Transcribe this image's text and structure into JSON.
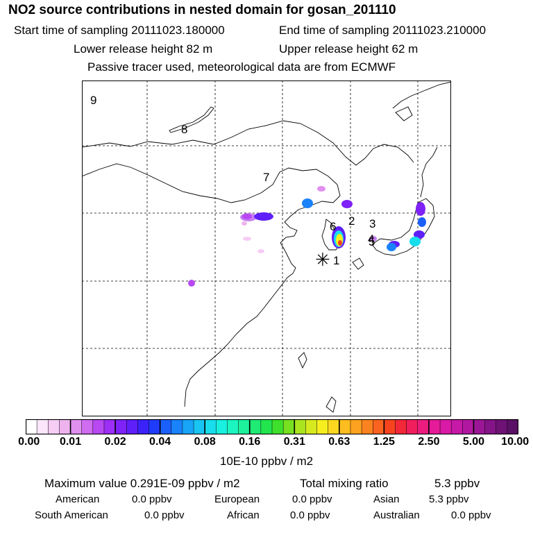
{
  "header": {
    "title": "NO2 source contributions in nested domain for gosan_201110",
    "start_time": "Start time of sampling 20111023.180000",
    "end_time": "End time of sampling 20111023.210000",
    "lower_release": "Lower release height   82 m",
    "upper_release": "Upper release height   62 m",
    "tracer_note": "Passive tracer used, meteorological data are from ECMWF"
  },
  "map": {
    "region_labels": [
      "9",
      "8",
      "7",
      "6",
      "2",
      "3",
      "4",
      "5",
      "1"
    ],
    "receptor_symbol": "✳"
  },
  "colorbar": {
    "tick_labels": [
      "0.00",
      "0.01",
      "0.02",
      "0.04",
      "0.08",
      "0.16",
      "0.31",
      "0.63",
      "1.25",
      "2.50",
      "5.00",
      "10.00"
    ],
    "units": "10E-10 ppbv / m2",
    "colors": [
      "#ffffff",
      "#fbe6fb",
      "#f5cdf5",
      "#eeb3ee",
      "#e090ef",
      "#cf6cf0",
      "#b848f2",
      "#9c2ef5",
      "#7e22f7",
      "#5f1ff9",
      "#3b22fb",
      "#1f3cfb",
      "#1b60fb",
      "#1a82fa",
      "#18a4f7",
      "#18c4f2",
      "#18ddec",
      "#19f0df",
      "#1bf5c0",
      "#1df19b",
      "#1feb74",
      "#22e54e",
      "#3ee02c",
      "#76e021",
      "#aae41f",
      "#d7ea1f",
      "#f7ee20",
      "#fbd71f",
      "#fbbd1f",
      "#fba11f",
      "#fb831f",
      "#f9631f",
      "#f6441f",
      "#f32838",
      "#f01e5c",
      "#ec1c7f",
      "#e51b99",
      "#d81aa6",
      "#c619a8",
      "#b118a2",
      "#9b1696",
      "#841487",
      "#6e1276",
      "#5a1065"
    ]
  },
  "summary": {
    "max_value": "Maximum value  0.291E-09 ppbv / m2",
    "total_label": "Total mixing ratio",
    "total_value": "5.3 ppbv",
    "american_label": "American",
    "american_value": "0.0 ppbv",
    "european_label": "European",
    "european_value": "0.0 ppbv",
    "asian_label": "Asian",
    "asian_value": "5.3 ppbv",
    "south_american_label": "South American",
    "south_american_value": "0.0 ppbv",
    "african_label": "African",
    "african_value": "0.0 ppbv",
    "australian_label": "Australian",
    "australian_value": "0.0 ppbv"
  }
}
